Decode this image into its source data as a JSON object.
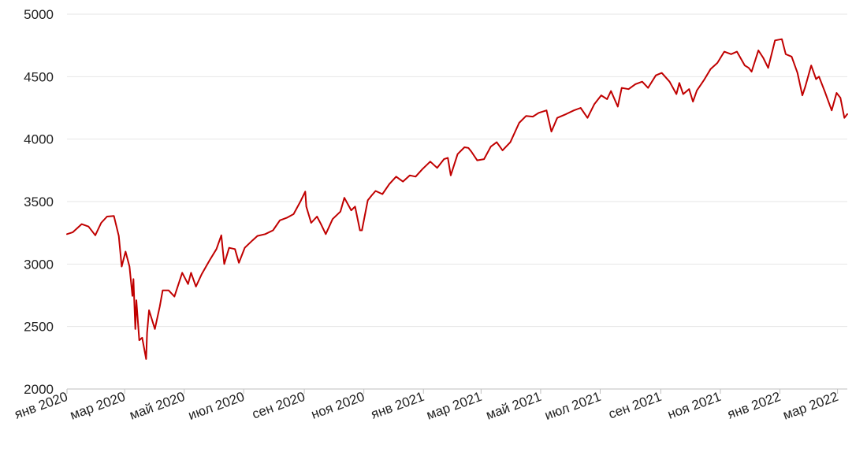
{
  "chart_data": {
    "type": "line",
    "title": "",
    "xlabel": "",
    "ylabel": "",
    "ylim": [
      2000,
      5000
    ],
    "xlim": [
      "2020-01-02",
      "2022-03-11"
    ],
    "grid": true,
    "legend": "none",
    "line_color": "#c00000",
    "y_ticks": [
      {
        "value": 2000,
        "label": "2000"
      },
      {
        "value": 2500,
        "label": "2500"
      },
      {
        "value": 3000,
        "label": "3000"
      },
      {
        "value": 3500,
        "label": "3500"
      },
      {
        "value": 4000,
        "label": "4000"
      },
      {
        "value": 4500,
        "label": "4500"
      },
      {
        "value": 5000,
        "label": "5000"
      }
    ],
    "x_ticks": [
      {
        "date": "2020-01-01",
        "label": "янв 2020"
      },
      {
        "date": "2020-03-01",
        "label": "мар 2020"
      },
      {
        "date": "2020-05-01",
        "label": "май 2020"
      },
      {
        "date": "2020-07-01",
        "label": "июл 2020"
      },
      {
        "date": "2020-09-01",
        "label": "сен 2020"
      },
      {
        "date": "2020-11-01",
        "label": "ноя 2020"
      },
      {
        "date": "2021-01-01",
        "label": "янв 2021"
      },
      {
        "date": "2021-03-01",
        "label": "мар 2021"
      },
      {
        "date": "2021-05-01",
        "label": "май 2021"
      },
      {
        "date": "2021-07-01",
        "label": "июл 2021"
      },
      {
        "date": "2021-09-01",
        "label": "сен 2021"
      },
      {
        "date": "2021-11-01",
        "label": "ноя 2021"
      },
      {
        "date": "2022-01-01",
        "label": "янв 2022"
      },
      {
        "date": "2022-03-01",
        "label": "мар 2022"
      }
    ],
    "series": [
      {
        "x": [
          "2020-01-02",
          "2020-01-08",
          "2020-01-17",
          "2020-01-24",
          "2020-01-31",
          "2020-02-06",
          "2020-02-12",
          "2020-02-19",
          "2020-02-24",
          "2020-02-27",
          "2020-03-02",
          "2020-03-06",
          "2020-03-09",
          "2020-03-10",
          "2020-03-12",
          "2020-03-13",
          "2020-03-16",
          "2020-03-19",
          "2020-03-23",
          "2020-03-24",
          "2020-03-26",
          "2020-04-01",
          "2020-04-06",
          "2020-04-09",
          "2020-04-15",
          "2020-04-21",
          "2020-04-29",
          "2020-05-05",
          "2020-05-08",
          "2020-05-13",
          "2020-05-19",
          "2020-05-27",
          "2020-06-03",
          "2020-06-08",
          "2020-06-11",
          "2020-06-16",
          "2020-06-22",
          "2020-06-26",
          "2020-07-02",
          "2020-07-10",
          "2020-07-15",
          "2020-07-23",
          "2020-07-31",
          "2020-08-07",
          "2020-08-14",
          "2020-08-21",
          "2020-08-28",
          "2020-09-02",
          "2020-09-03",
          "2020-09-08",
          "2020-09-14",
          "2020-09-18",
          "2020-09-23",
          "2020-09-30",
          "2020-10-08",
          "2020-10-12",
          "2020-10-19",
          "2020-10-23",
          "2020-10-28",
          "2020-10-30",
          "2020-11-05",
          "2020-11-09",
          "2020-11-13",
          "2020-11-20",
          "2020-11-27",
          "2020-12-04",
          "2020-12-11",
          "2020-12-18",
          "2020-12-24",
          "2020-12-31",
          "2021-01-08",
          "2021-01-15",
          "2021-01-22",
          "2021-01-26",
          "2021-01-29",
          "2021-02-05",
          "2021-02-12",
          "2021-02-16",
          "2021-02-19",
          "2021-02-25",
          "2021-03-04",
          "2021-03-11",
          "2021-03-17",
          "2021-03-23",
          "2021-03-31",
          "2021-04-09",
          "2021-04-16",
          "2021-04-23",
          "2021-04-29",
          "2021-05-07",
          "2021-05-12",
          "2021-05-18",
          "2021-05-27",
          "2021-06-04",
          "2021-06-11",
          "2021-06-18",
          "2021-06-25",
          "2021-07-02",
          "2021-07-08",
          "2021-07-12",
          "2021-07-19",
          "2021-07-23",
          "2021-07-30",
          "2021-08-06",
          "2021-08-13",
          "2021-08-19",
          "2021-08-27",
          "2021-09-02",
          "2021-09-10",
          "2021-09-17",
          "2021-09-20",
          "2021-09-24",
          "2021-09-30",
          "2021-10-04",
          "2021-10-08",
          "2021-10-15",
          "2021-10-22",
          "2021-10-29",
          "2021-11-05",
          "2021-11-12",
          "2021-11-18",
          "2021-11-26",
          "2021-11-30",
          "2021-12-03",
          "2021-12-10",
          "2021-12-15",
          "2021-12-20",
          "2021-12-27",
          "2022-01-03",
          "2022-01-07",
          "2022-01-13",
          "2022-01-19",
          "2022-01-24",
          "2022-01-27",
          "2022-02-02",
          "2022-02-07",
          "2022-02-10",
          "2022-02-16",
          "2022-02-23",
          "2022-02-28",
          "2022-03-04",
          "2022-03-08",
          "2022-03-11"
        ],
        "y": [
          3240,
          3255,
          3320,
          3300,
          3230,
          3330,
          3380,
          3385,
          3225,
          2980,
          3100,
          2980,
          2745,
          2880,
          2480,
          2710,
          2390,
          2410,
          2240,
          2450,
          2630,
          2480,
          2660,
          2790,
          2790,
          2740,
          2930,
          2840,
          2930,
          2820,
          2920,
          3030,
          3120,
          3230,
          3000,
          3130,
          3120,
          3010,
          3130,
          3190,
          3225,
          3240,
          3270,
          3350,
          3370,
          3400,
          3500,
          3580,
          3460,
          3330,
          3380,
          3320,
          3240,
          3360,
          3420,
          3530,
          3430,
          3460,
          3270,
          3270,
          3510,
          3550,
          3585,
          3560,
          3640,
          3700,
          3660,
          3710,
          3700,
          3760,
          3820,
          3770,
          3840,
          3850,
          3710,
          3880,
          3935,
          3930,
          3900,
          3830,
          3840,
          3940,
          3975,
          3910,
          3975,
          4130,
          4185,
          4180,
          4210,
          4230,
          4060,
          4170,
          4200,
          4230,
          4250,
          4170,
          4280,
          4350,
          4320,
          4385,
          4260,
          4410,
          4400,
          4440,
          4460,
          4410,
          4510,
          4530,
          4460,
          4360,
          4450,
          4360,
          4400,
          4300,
          4390,
          4470,
          4560,
          4610,
          4700,
          4680,
          4700,
          4590,
          4570,
          4540,
          4710,
          4650,
          4570,
          4790,
          4800,
          4680,
          4660,
          4530,
          4350,
          4420,
          4590,
          4480,
          4500,
          4380,
          4230,
          4370,
          4330,
          4170,
          4200
        ]
      }
    ]
  }
}
